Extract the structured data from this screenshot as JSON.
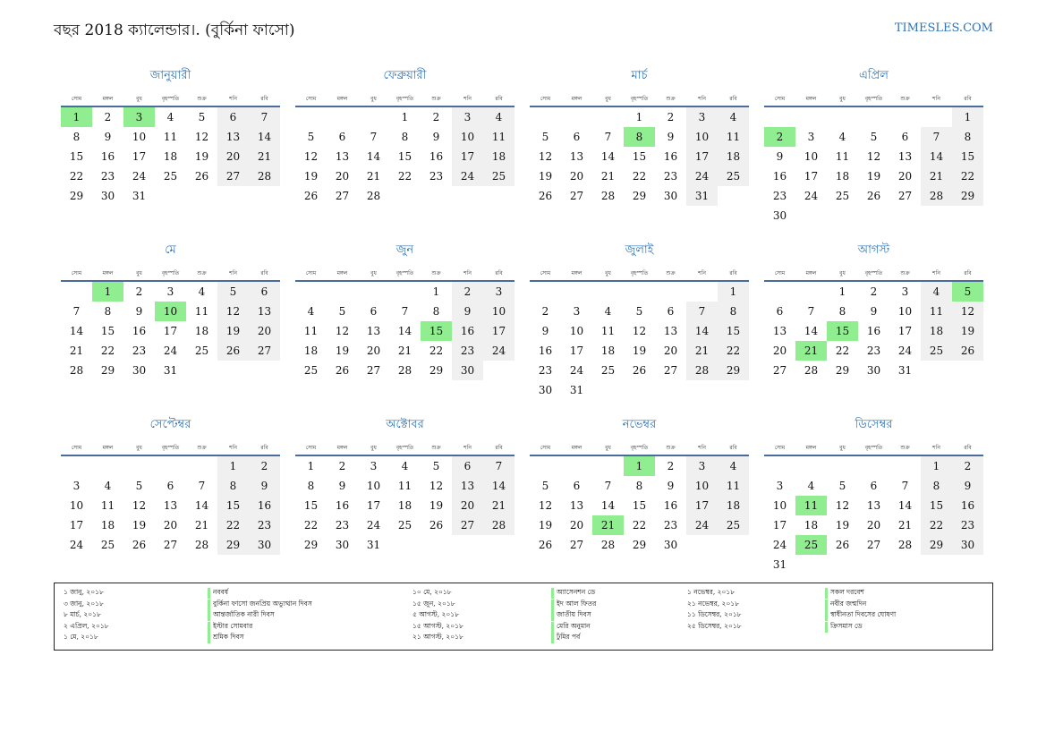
{
  "header": {
    "title": "বছর 2018 ক্যালেন্ডার।. (বুর্কিনা ফাসো)",
    "site": "TIMESLES.COM"
  },
  "weekdays": [
    "সোম",
    "মঙ্গল",
    "বুধ",
    "বৃহস্পতি",
    "শুক্র",
    "শনি",
    "রবি"
  ],
  "months": [
    {
      "name": "জানুয়ারী",
      "highlight": [
        1,
        3
      ],
      "weeks": [
        [
          1,
          2,
          3,
          4,
          5,
          6,
          7
        ],
        [
          8,
          9,
          10,
          11,
          12,
          13,
          14
        ],
        [
          15,
          16,
          17,
          18,
          19,
          20,
          21
        ],
        [
          22,
          23,
          24,
          25,
          26,
          27,
          28
        ],
        [
          29,
          30,
          31
        ]
      ]
    },
    {
      "name": "ফেব্রুয়ারী",
      "highlight": [],
      "weeks": [
        [
          null,
          null,
          null,
          1,
          2,
          3,
          4
        ],
        [
          5,
          6,
          7,
          8,
          9,
          10,
          11
        ],
        [
          12,
          13,
          14,
          15,
          16,
          17,
          18
        ],
        [
          19,
          20,
          21,
          22,
          23,
          24,
          25
        ],
        [
          26,
          27,
          28
        ]
      ]
    },
    {
      "name": "মার্চ",
      "highlight": [
        8
      ],
      "weeks": [
        [
          null,
          null,
          null,
          1,
          2,
          3,
          4
        ],
        [
          5,
          6,
          7,
          8,
          9,
          10,
          11
        ],
        [
          12,
          13,
          14,
          15,
          16,
          17,
          18
        ],
        [
          19,
          20,
          21,
          22,
          23,
          24,
          25
        ],
        [
          26,
          27,
          28,
          29,
          30,
          31
        ]
      ]
    },
    {
      "name": "এপ্রিল",
      "highlight": [
        2
      ],
      "weeks": [
        [
          null,
          null,
          null,
          null,
          null,
          null,
          1
        ],
        [
          2,
          3,
          4,
          5,
          6,
          7,
          8
        ],
        [
          9,
          10,
          11,
          12,
          13,
          14,
          15
        ],
        [
          16,
          17,
          18,
          19,
          20,
          21,
          22
        ],
        [
          23,
          24,
          25,
          26,
          27,
          28,
          29
        ],
        [
          30
        ]
      ]
    },
    {
      "name": "মে",
      "highlight": [
        1,
        10
      ],
      "weeks": [
        [
          null,
          1,
          2,
          3,
          4,
          5,
          6
        ],
        [
          7,
          8,
          9,
          10,
          11,
          12,
          13
        ],
        [
          14,
          15,
          16,
          17,
          18,
          19,
          20
        ],
        [
          21,
          22,
          23,
          24,
          25,
          26,
          27
        ],
        [
          28,
          29,
          30,
          31
        ]
      ]
    },
    {
      "name": "জুন",
      "highlight": [
        15
      ],
      "weeks": [
        [
          null,
          null,
          null,
          null,
          1,
          2,
          3
        ],
        [
          4,
          5,
          6,
          7,
          8,
          9,
          10
        ],
        [
          11,
          12,
          13,
          14,
          15,
          16,
          17
        ],
        [
          18,
          19,
          20,
          21,
          22,
          23,
          24
        ],
        [
          25,
          26,
          27,
          28,
          29,
          30
        ]
      ]
    },
    {
      "name": "জুলাই",
      "highlight": [],
      "weeks": [
        [
          null,
          null,
          null,
          null,
          null,
          null,
          1
        ],
        [
          2,
          3,
          4,
          5,
          6,
          7,
          8
        ],
        [
          9,
          10,
          11,
          12,
          13,
          14,
          15
        ],
        [
          16,
          17,
          18,
          19,
          20,
          21,
          22
        ],
        [
          23,
          24,
          25,
          26,
          27,
          28,
          29
        ],
        [
          30,
          31
        ]
      ]
    },
    {
      "name": "আগস্ট",
      "highlight": [
        5,
        15,
        21
      ],
      "weeks": [
        [
          null,
          null,
          1,
          2,
          3,
          4,
          5
        ],
        [
          6,
          7,
          8,
          9,
          10,
          11,
          12
        ],
        [
          13,
          14,
          15,
          16,
          17,
          18,
          19
        ],
        [
          20,
          21,
          22,
          23,
          24,
          25,
          26
        ],
        [
          27,
          28,
          29,
          30,
          31
        ]
      ]
    },
    {
      "name": "সেপ্টেম্বর",
      "highlight": [],
      "weeks": [
        [
          null,
          null,
          null,
          null,
          null,
          1,
          2
        ],
        [
          3,
          4,
          5,
          6,
          7,
          8,
          9
        ],
        [
          10,
          11,
          12,
          13,
          14,
          15,
          16
        ],
        [
          17,
          18,
          19,
          20,
          21,
          22,
          23
        ],
        [
          24,
          25,
          26,
          27,
          28,
          29,
          30
        ]
      ]
    },
    {
      "name": "অক্টোবর",
      "highlight": [],
      "weeks": [
        [
          1,
          2,
          3,
          4,
          5,
          6,
          7
        ],
        [
          8,
          9,
          10,
          11,
          12,
          13,
          14
        ],
        [
          15,
          16,
          17,
          18,
          19,
          20,
          21
        ],
        [
          22,
          23,
          24,
          25,
          26,
          27,
          28
        ],
        [
          29,
          30,
          31
        ]
      ]
    },
    {
      "name": "নভেম্বর",
      "highlight": [
        1,
        21
      ],
      "weeks": [
        [
          null,
          null,
          null,
          1,
          2,
          3,
          4
        ],
        [
          5,
          6,
          7,
          8,
          9,
          10,
          11
        ],
        [
          12,
          13,
          14,
          15,
          16,
          17,
          18
        ],
        [
          19,
          20,
          21,
          22,
          23,
          24,
          25
        ],
        [
          26,
          27,
          28,
          29,
          30
        ]
      ]
    },
    {
      "name": "ডিসেম্বর",
      "highlight": [
        11,
        25
      ],
      "weeks": [
        [
          null,
          null,
          null,
          null,
          null,
          1,
          2
        ],
        [
          3,
          4,
          5,
          6,
          7,
          8,
          9
        ],
        [
          10,
          11,
          12,
          13,
          14,
          15,
          16
        ],
        [
          17,
          18,
          19,
          20,
          21,
          22,
          23
        ],
        [
          24,
          25,
          26,
          27,
          28,
          29,
          30
        ],
        [
          31
        ]
      ]
    }
  ],
  "holidays": [
    {
      "date": "১ জানু, ২০১৮",
      "name": "নববর্ষ"
    },
    {
      "date": "৩ জানু, ২০১৮",
      "name": "বুর্কিনা ফাসো জনপ্রিয় অভ্যুত্থান দিবস"
    },
    {
      "date": "৮ মার্চ, ২০১৮",
      "name": "আন্তর্জাতিক নারী দিবস"
    },
    {
      "date": "২ এপ্রিল, ২০১৮",
      "name": "ইস্টার সোমবার"
    },
    {
      "date": "১ মে, ২০১৮",
      "name": "শ্রমিক দিবস"
    },
    {
      "date": "১০ মে, ২০১৮",
      "name": "অ্যাসেনশন ডে"
    },
    {
      "date": "১৫ জুন, ২০১৮",
      "name": "ইদ আল ফিতর"
    },
    {
      "date": "৫ আগস্ট, ২০১৮",
      "name": "জাতীয় দিবস"
    },
    {
      "date": "১৫ আগস্ট, ২০১৮",
      "name": "মেরি অনুমান"
    },
    {
      "date": "২১ আগস্ট, ২০১৮",
      "name": "ঢুঁমির পর্ব"
    },
    {
      "date": "১ নভেম্বর, ২০১৮",
      "name": "সকল দরবেশ"
    },
    {
      "date": "২১ নভেম্বর, ২০১৮",
      "name": "নবীর জন্মদিন"
    },
    {
      "date": "১১ ডিসেম্বর, ২০১৮",
      "name": "স্বাধীনতা দিবসের ঘোষণা"
    },
    {
      "date": "২৫ ডিসেম্বর, ২০১৮",
      "name": "ক্রিসমাস ডে"
    }
  ]
}
